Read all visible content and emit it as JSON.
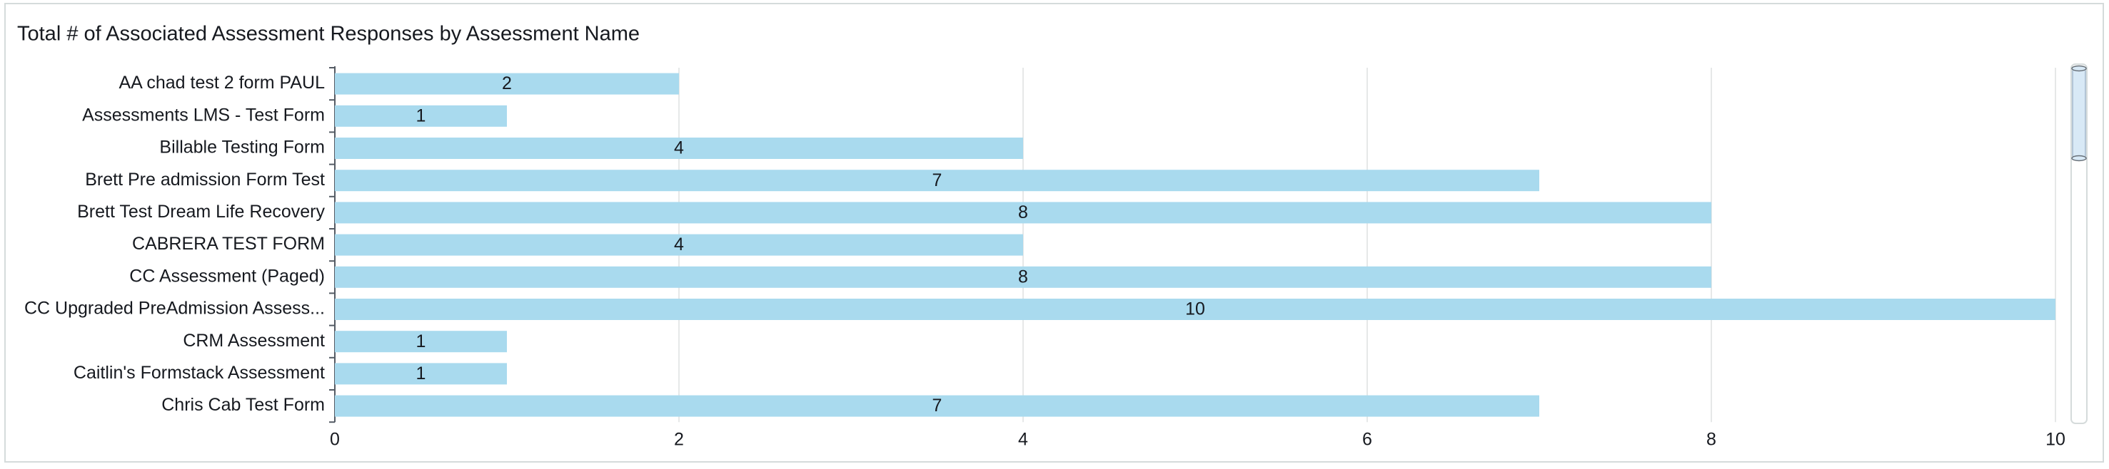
{
  "chart_data": {
    "type": "hbar",
    "title": "Total # of Associated Assessment Responses by Assessment Name",
    "categories": [
      "AA chad test 2 form PAUL",
      "Assessments LMS - Test Form",
      "Billable Testing Form",
      "Brett Pre admission Form Test",
      "Brett Test Dream Life Recovery",
      "CABRERA TEST FORM",
      "CC Assessment (Paged)",
      "CC Upgraded PreAdmission Assess...",
      "CRM Assessment",
      "Caitlin's Formstack Assessment",
      "Chris Cab Test Form"
    ],
    "values": [
      2,
      1,
      4,
      7,
      8,
      4,
      8,
      10,
      1,
      1,
      7
    ],
    "color": "#a9daee",
    "xlim": [
      0,
      10
    ],
    "xticks": [
      0,
      2,
      4,
      6,
      8,
      10
    ],
    "grid": true
  }
}
